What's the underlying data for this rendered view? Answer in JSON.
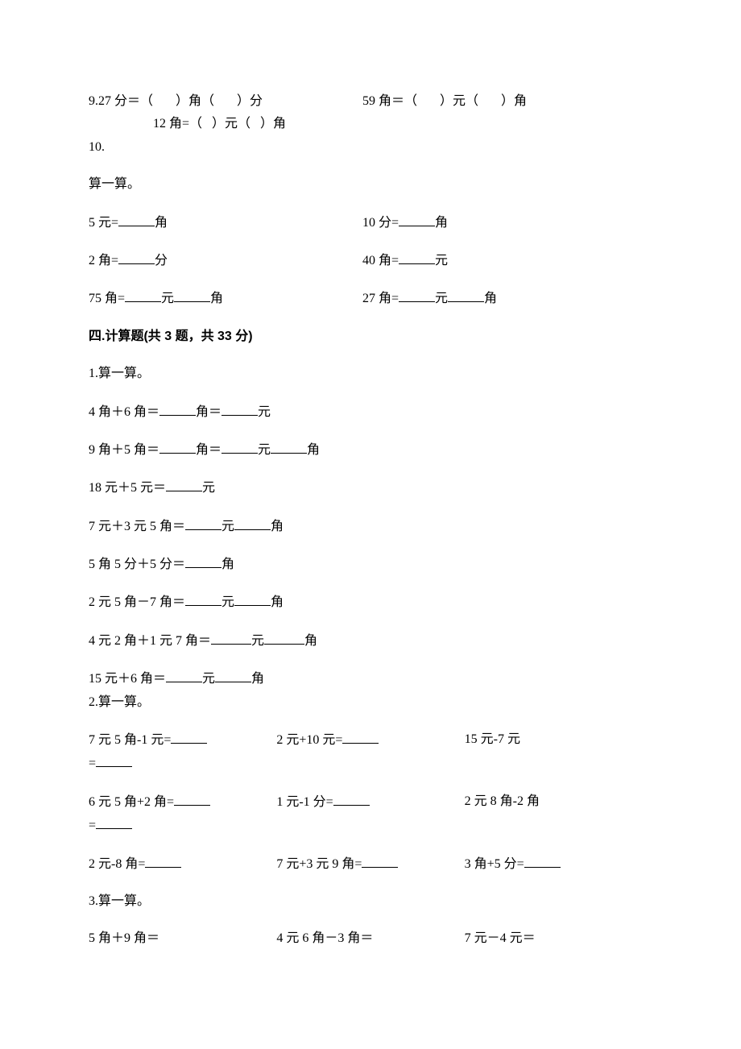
{
  "q9": {
    "a": "9.27 分＝（",
    "b": "）角（",
    "c": "）分",
    "d": "59 角＝（",
    "e": "）元（",
    "f": "）角",
    "g": "12 角=（",
    "h": "）元（",
    "i": "）角"
  },
  "q10_num": "10.",
  "q10_title": "算一算。",
  "q10": {
    "r1a_pre": "5 元=",
    "r1a_post": "角",
    "r1b_pre": "10 分=",
    "r1b_post": "角",
    "r2a_pre": "2 角=",
    "r2a_post": "分",
    "r2b_pre": "40 角=",
    "r2b_post": "元",
    "r3a_pre": "75 角=",
    "r3a_mid": "元",
    "r3a_post": "角",
    "r3b_pre": "27 角=",
    "r3b_mid": "元",
    "r3b_post": "角"
  },
  "s4_title": "四.计算题(共 3 题，共 33 分)",
  "p1_title": "1.算一算。",
  "p1": {
    "l1_pre": "4 角＋6 角＝",
    "l1_mid": "角＝",
    "l1_post": "元",
    "l2_pre": "9 角＋5 角＝",
    "l2_mid": "角＝",
    "l2_mid2": "元",
    "l2_post": "角",
    "l3_pre": "18 元＋5 元＝",
    "l3_post": "元",
    "l4_pre": "7 元＋3 元 5 角＝",
    "l4_mid": "元",
    "l4_post": "角",
    "l5_pre": "5 角 5 分＋5 分＝",
    "l5_post": "角",
    "l6_pre": "2 元 5 角－7 角＝",
    "l6_mid": "元",
    "l6_post": "角",
    "l7_pre": "4 元 2 角＋1 元 7 角＝",
    "l7_mid": "元",
    "l7_post": "角",
    "l8_pre": "15 元＋6 角＝",
    "l8_mid": "元",
    "l8_post": "角"
  },
  "p2_title": "2.算一算。",
  "p2": {
    "a1": "7 元 5 角-1 元=",
    "a2": "2 元+10 元=",
    "a3": "15 元-7 元",
    "eq": "=",
    "b1": "6 元 5 角+2 角=",
    "b2": "1 元-1 分=",
    "b3": "2 元 8 角-2 角",
    "c1": "2 元-8 角=",
    "c2": "7 元+3 元 9 角=",
    "c3": "3 角+5 分="
  },
  "p3_title": "3.算一算。",
  "p3": {
    "a1": "5 角＋9 角＝",
    "a2": "4 元 6 角－3 角＝",
    "a3": "7 元－4 元＝"
  }
}
